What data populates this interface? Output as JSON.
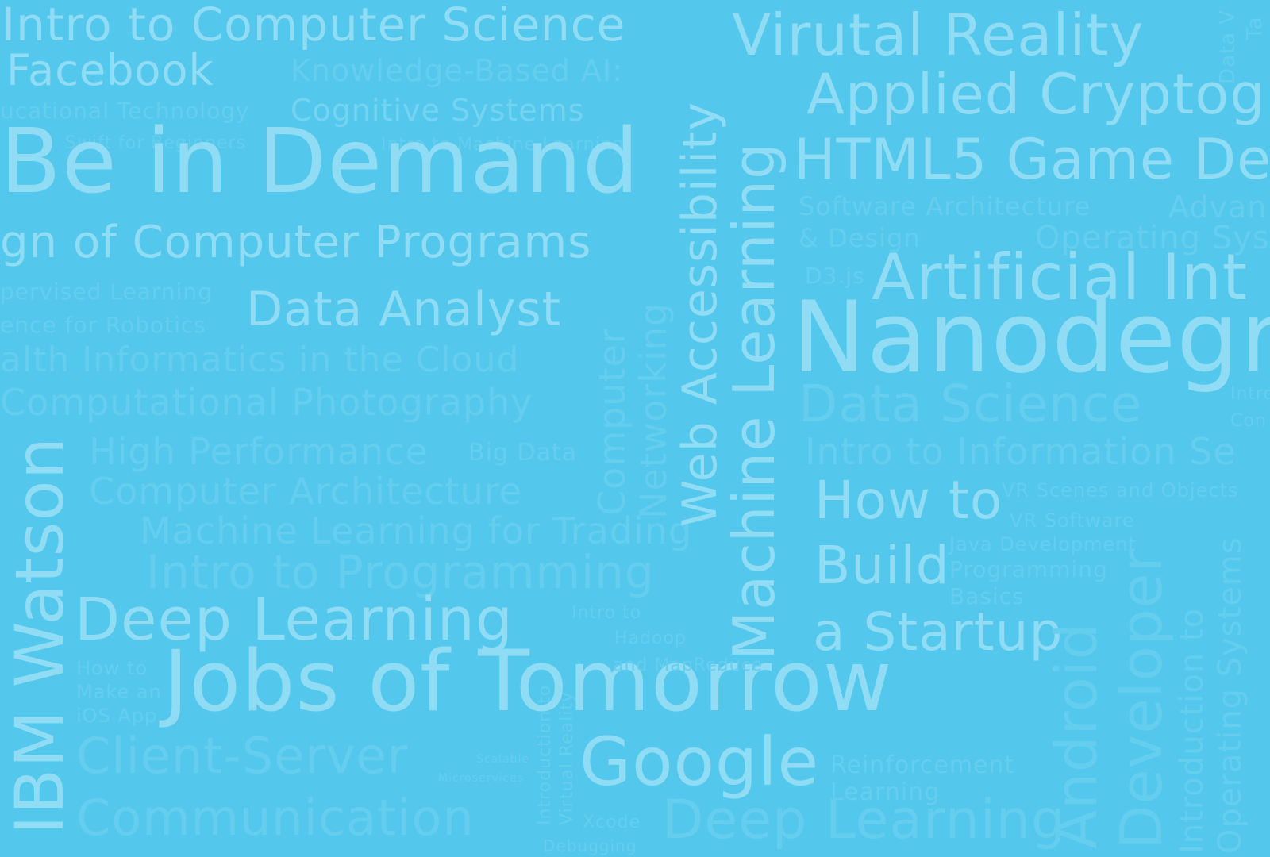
{
  "background_color": "#54c8ec",
  "text_colors": [
    "#8fdcf4",
    "#74d3f0",
    "#65cdee"
  ],
  "words": [
    "Intro to Computer Science",
    "Facebook",
    "Knowledge-Based AI:",
    "Cognitive Systems",
    "ucational Technology",
    "Swift for Beginners",
    "Intro to Machine Learning",
    "Be in Demand",
    "gn of Computer Programs",
    "pervised Learning",
    "ence for Robotics",
    "Data Analyst",
    "alth Informatics in the Cloud",
    "Computational Photography",
    "High Performance",
    "Big Data",
    "Computer Architecture",
    "Machine Learning for Trading",
    "Intro to Programming",
    "Deep Learning",
    "Jobs of Tomorrow",
    "How to",
    "Make an",
    "iOS App",
    "Client-Server",
    "Communication",
    "Scalable",
    "Microservices",
    "Google",
    "Reinforcement",
    "Learning",
    "Xcode",
    "Debugging",
    "Deep Learning",
    "Intro to",
    "Hadoop",
    "and MapReduce",
    "Virutal Reality",
    "Applied Cryptogr",
    "HTML5 Game De",
    "Software Architecture",
    "& Design",
    "Advan",
    "Operating Syst",
    "D3.js",
    "Artificial Int",
    "Nanodegr",
    "Data Science",
    "Intro to Information Se",
    "How to",
    "Build",
    "a Startup",
    "VR Scenes and Objects",
    "VR Software",
    "Java Development",
    "Programming",
    "Basics",
    "IBM Watson",
    "Computer",
    "Networking",
    "Web Accessibility",
    "Machine Learning",
    "Introduction to",
    "Virtual Reality",
    "Android",
    "Developer",
    "Introduction to",
    "Operating Systems",
    "Data V",
    "Ta",
    "Intro",
    "Con"
  ]
}
